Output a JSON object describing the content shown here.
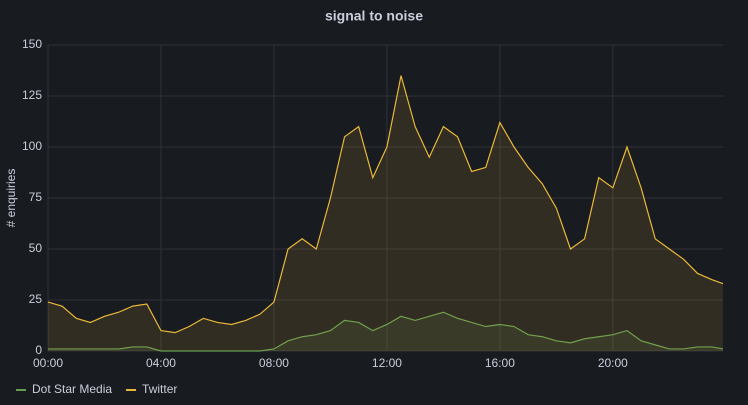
{
  "chart_data": {
    "type": "line",
    "title": "signal to noise",
    "y_label": "# enquiries",
    "x": [
      0,
      0.5,
      1,
      1.5,
      2,
      2.5,
      3,
      3.5,
      4,
      4.5,
      5,
      5.5,
      6,
      6.5,
      7,
      7.5,
      8,
      8.5,
      9,
      9.5,
      10,
      10.5,
      11,
      11.5,
      12,
      12.5,
      13,
      13.5,
      14,
      14.5,
      15,
      15.5,
      16,
      16.5,
      17,
      17.5,
      18,
      18.5,
      19,
      19.5,
      20,
      20.5,
      21,
      21.5,
      22,
      22.5,
      23,
      23.5,
      23.9
    ],
    "series": [
      {
        "name": "Dot Star Media",
        "color": "#629e51",
        "values": [
          1,
          1,
          1,
          1,
          1,
          1,
          2,
          2,
          0,
          0,
          0,
          0,
          0,
          0,
          0,
          0,
          1,
          5,
          7,
          8,
          10,
          15,
          14,
          10,
          13,
          17,
          15,
          17,
          19,
          16,
          14,
          12,
          13,
          12,
          8,
          7,
          5,
          4,
          6,
          7,
          8,
          10,
          5,
          3,
          1,
          1,
          2,
          2,
          1
        ]
      },
      {
        "name": "Twitter",
        "color": "#eab839",
        "values": [
          24,
          22,
          16,
          14,
          17,
          19,
          22,
          23,
          10,
          9,
          12,
          16,
          14,
          13,
          15,
          18,
          24,
          50,
          55,
          50,
          75,
          105,
          110,
          85,
          100,
          135,
          110,
          95,
          110,
          105,
          88,
          90,
          112,
          100,
          90,
          82,
          70,
          50,
          55,
          85,
          80,
          100,
          80,
          55,
          50,
          45,
          38,
          35,
          33
        ]
      }
    ],
    "xlim": [
      0,
      23.9
    ],
    "xticks": [
      {
        "value": 0,
        "label": "00:00"
      },
      {
        "value": 4,
        "label": "04:00"
      },
      {
        "value": 8,
        "label": "08:00"
      },
      {
        "value": 12,
        "label": "12:00"
      },
      {
        "value": 16,
        "label": "16:00"
      },
      {
        "value": 20,
        "label": "20:00"
      }
    ],
    "ylim": [
      0,
      150
    ],
    "yticks": [
      0,
      25,
      50,
      75,
      100,
      125,
      150
    ],
    "grid": true,
    "fill": true,
    "legend": "bottom"
  }
}
